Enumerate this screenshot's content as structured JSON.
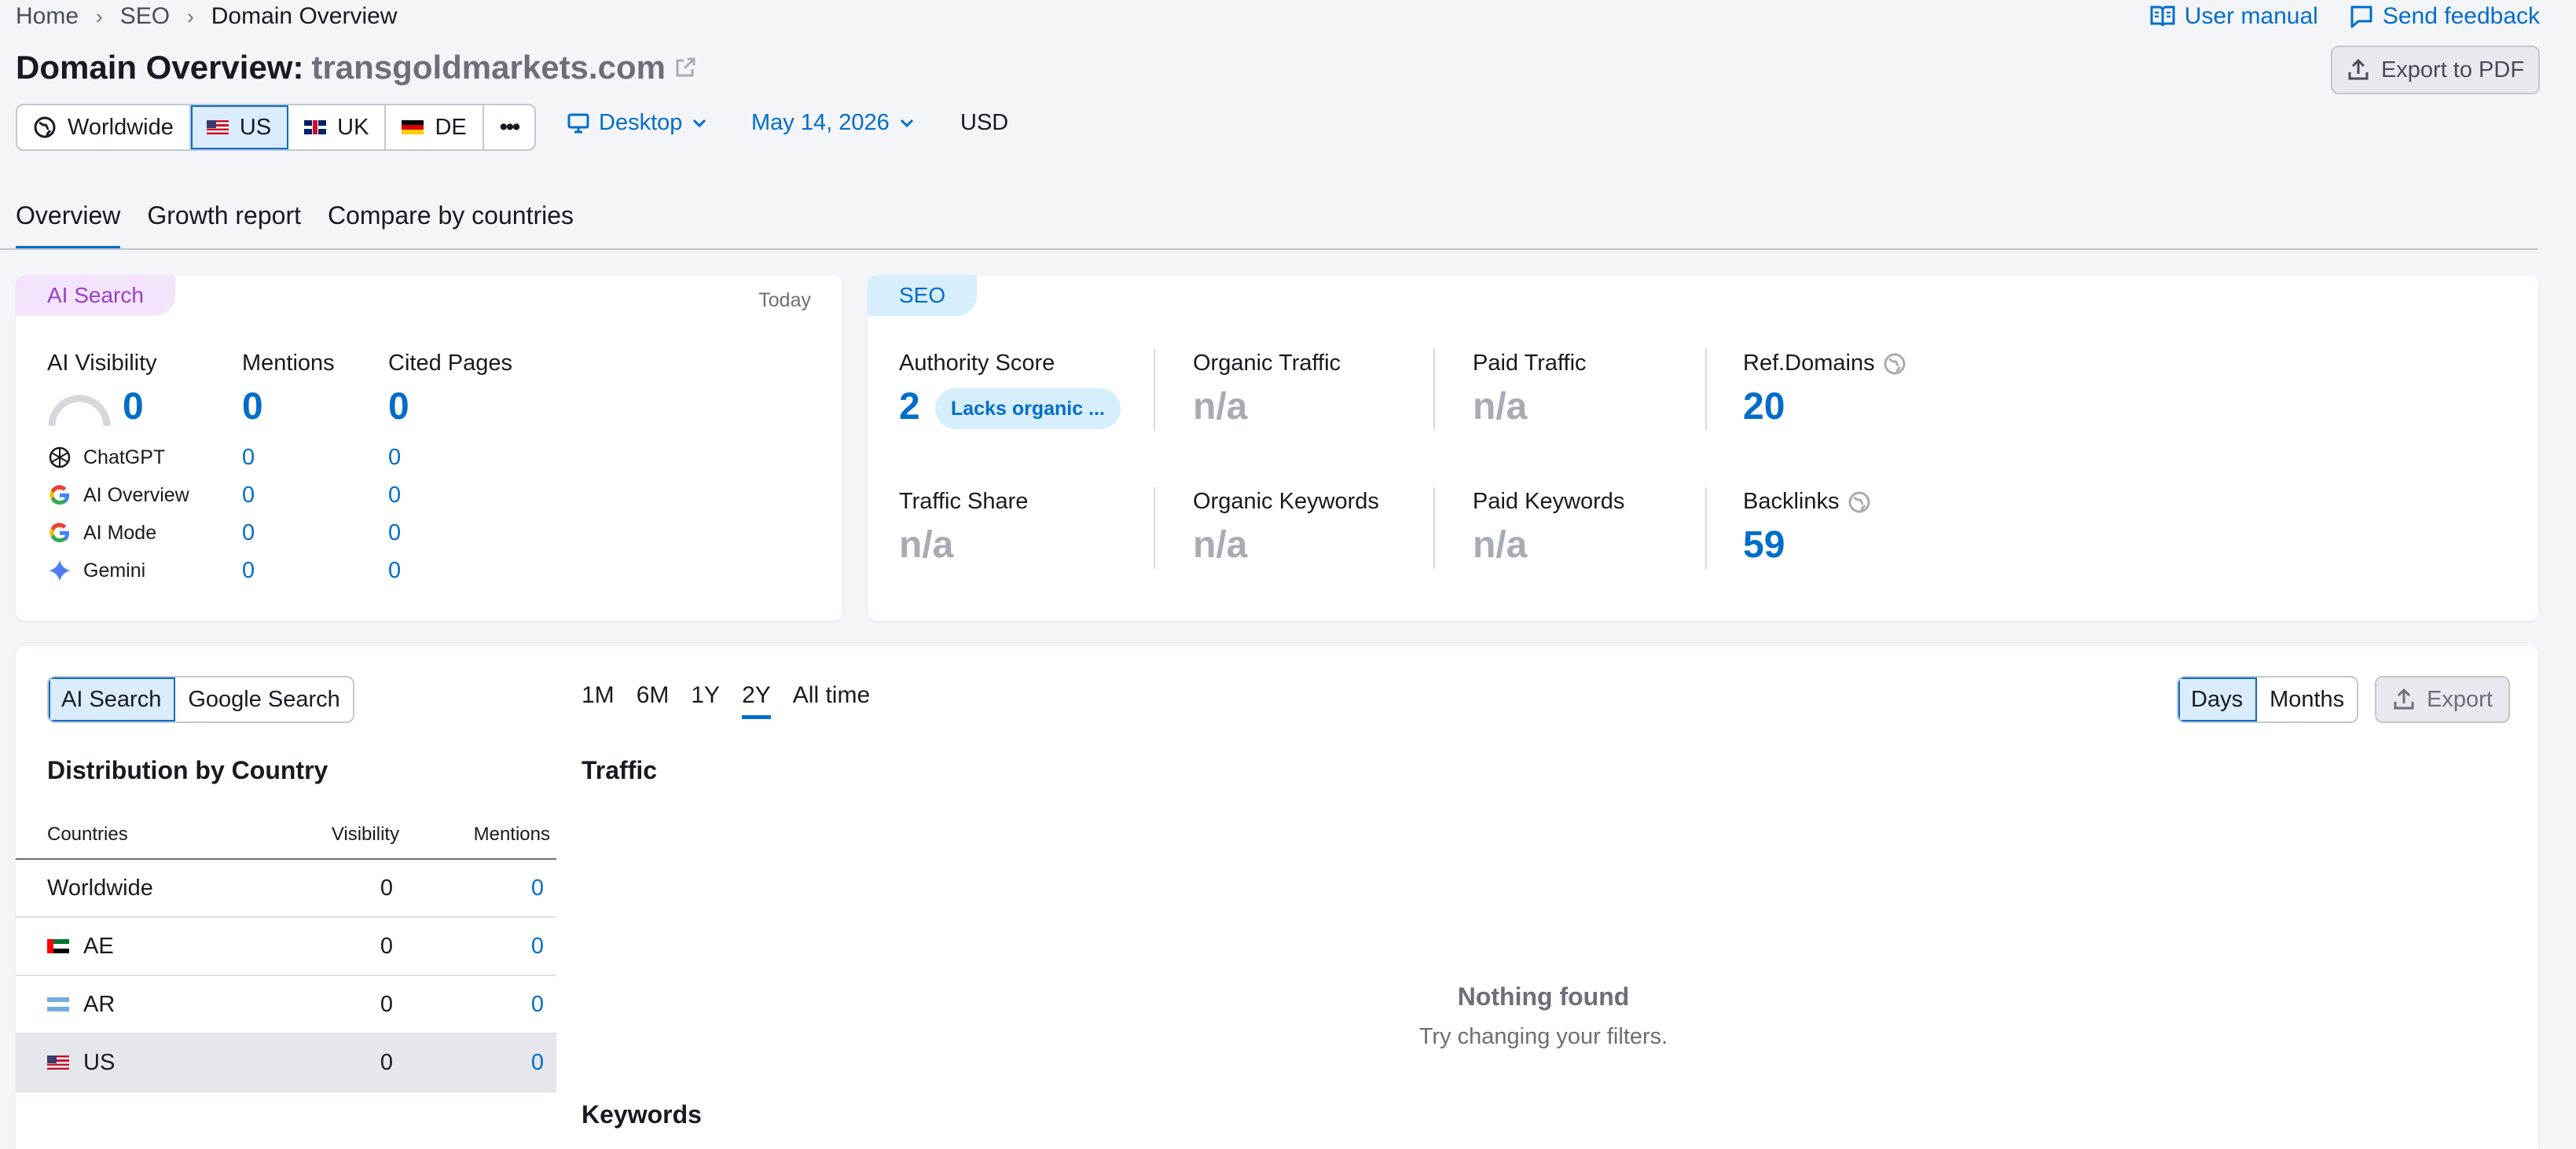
{
  "breadcrumb": [
    "Home",
    "SEO",
    "Domain Overview"
  ],
  "top_links": {
    "user_manual": "User manual",
    "send_feedback": "Send feedback"
  },
  "title": {
    "prefix": "Domain Overview:",
    "domain": "transgoldmarkets.com"
  },
  "export_pdf": "Export to PDF",
  "databases": [
    {
      "label": "Worldwide",
      "icon": "globe-icon",
      "active": false
    },
    {
      "label": "US",
      "icon": "flag-us",
      "active": true
    },
    {
      "label": "UK",
      "icon": "flag-uk",
      "active": false
    },
    {
      "label": "DE",
      "icon": "flag-de",
      "active": false
    }
  ],
  "more_label": "•••",
  "device": "Desktop",
  "date": "May 14, 2026",
  "currency": "USD",
  "tabs": [
    "Overview",
    "Growth report",
    "Compare by countries"
  ],
  "ai_search": {
    "tag": "AI Search",
    "updated": "Today",
    "metrics": [
      {
        "label": "AI Visibility",
        "value": "0"
      },
      {
        "label": "Mentions",
        "value": "0"
      },
      {
        "label": "Cited Pages",
        "value": "0"
      }
    ],
    "engines": [
      {
        "name": "ChatGPT",
        "icon": "chatgpt-icon",
        "mentions": "0",
        "cited": "0"
      },
      {
        "name": "AI Overview",
        "icon": "google-icon",
        "mentions": "0",
        "cited": "0"
      },
      {
        "name": "AI Mode",
        "icon": "google-icon",
        "mentions": "0",
        "cited": "0"
      },
      {
        "name": "Gemini",
        "icon": "gemini-icon",
        "mentions": "0",
        "cited": "0"
      }
    ]
  },
  "seo": {
    "tag": "SEO",
    "authority_score": {
      "label": "Authority Score",
      "value": "2",
      "badge": "Lacks organic ..."
    },
    "organic_traffic": {
      "label": "Organic Traffic",
      "value": "n/a"
    },
    "paid_traffic": {
      "label": "Paid Traffic",
      "value": "n/a"
    },
    "ref_domains": {
      "label": "Ref.Domains",
      "value": "20"
    },
    "traffic_share": {
      "label": "Traffic Share",
      "value": "n/a"
    },
    "organic_keywords": {
      "label": "Organic Keywords",
      "value": "n/a"
    },
    "paid_keywords": {
      "label": "Paid Keywords",
      "value": "n/a"
    },
    "backlinks": {
      "label": "Backlinks",
      "value": "59"
    }
  },
  "bottom": {
    "source_toggle": [
      "AI Search",
      "Google Search"
    ],
    "periods": [
      "1M",
      "6M",
      "1Y",
      "2Y",
      "All time"
    ],
    "active_period": "2Y",
    "granularity": [
      "Days",
      "Months"
    ],
    "export": "Export",
    "distribution_title": "Distribution by Country",
    "table_headers": [
      "Countries",
      "Visibility",
      "Mentions"
    ],
    "rows": [
      {
        "country": "Worldwide",
        "flag": "",
        "visibility": "0",
        "mentions": "0"
      },
      {
        "country": "AE",
        "flag": "flag-ae",
        "visibility": "0",
        "mentions": "0"
      },
      {
        "country": "AR",
        "flag": "flag-ar",
        "visibility": "0",
        "mentions": "0"
      },
      {
        "country": "US",
        "flag": "flag-us",
        "visibility": "0",
        "mentions": "0"
      }
    ],
    "traffic_title": "Traffic",
    "empty_title": "Nothing found",
    "empty_sub": "Try changing your filters.",
    "keywords_title": "Keywords"
  },
  "colors": {
    "accent": "#006dca",
    "ai_tag_bg": "#f3e4fb",
    "ai_tag_text": "#9b3fc9",
    "seo_tag_bg": "#d7eefc",
    "na_gray": "#a8abb4"
  }
}
